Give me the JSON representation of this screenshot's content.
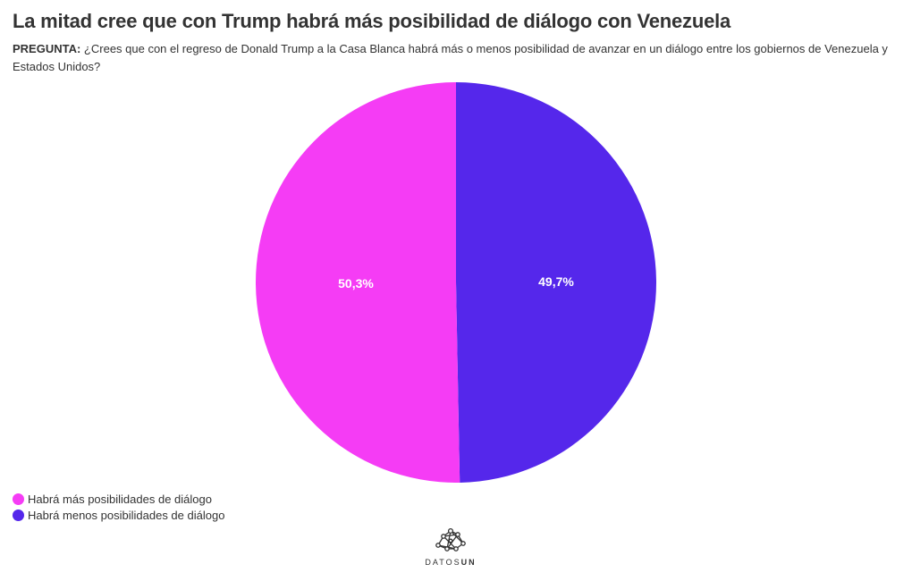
{
  "header": {
    "title": "La mitad cree que con Trump habrá más posibilidad de diálogo con Venezuela",
    "question_label": "PREGUNTA:",
    "question_text": " ¿Crees que con el regreso de Donald Trump a la Casa Blanca habrá más o menos posibilidad de avanzar en un diálogo entre los gobiernos de Venezuela y Estados Unidos?"
  },
  "chart_data": {
    "type": "pie",
    "title": "La mitad cree que con Trump habrá más posibilidad de diálogo con Venezuela",
    "categories": [
      "Habrá más posibilidades de diálogo",
      "Habrá menos posibilidades de diálogo"
    ],
    "values": [
      50.3,
      49.7
    ],
    "value_labels": [
      "50,3%",
      "49,7%"
    ],
    "colors": [
      "#f53cf5",
      "#5527eb"
    ],
    "legend_position": "bottom-left"
  },
  "footer": {
    "logo_text_light": "DATOS",
    "logo_text_bold": "UN"
  }
}
